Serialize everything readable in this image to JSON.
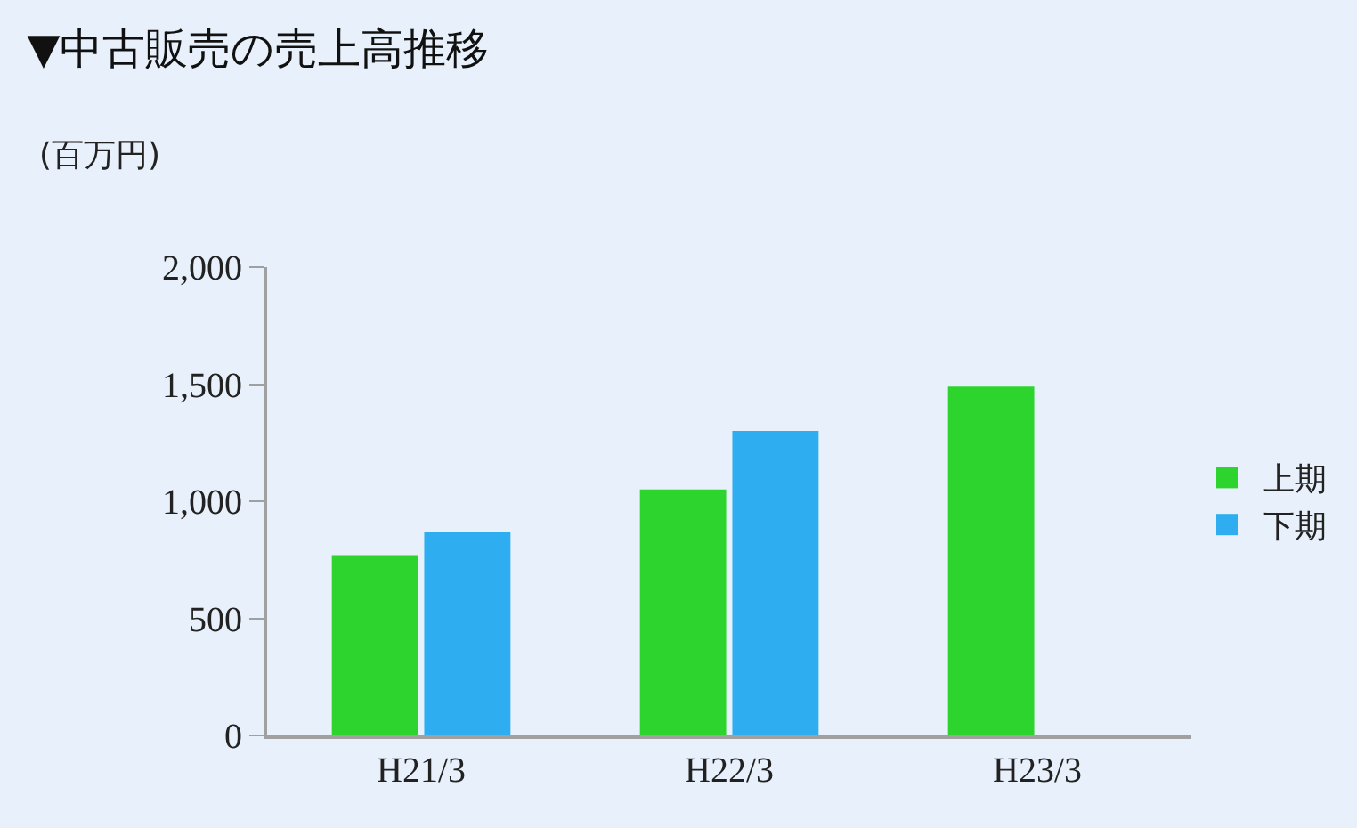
{
  "chart_data": {
    "type": "bar",
    "title": "▼中古販売の売上高推移",
    "ylabel": "(百万円)",
    "categories": [
      "H21/3",
      "H22/3",
      "H23/3"
    ],
    "series": [
      {
        "name": "上期",
        "color": "#2ed42e",
        "values": [
          770,
          1050,
          1490
        ]
      },
      {
        "name": "下期",
        "color": "#2eaef0",
        "values": [
          870,
          1300,
          null
        ]
      }
    ],
    "ylim": [
      0,
      2000
    ],
    "yticks": [
      {
        "value": 0,
        "label": "0"
      },
      {
        "value": 500,
        "label": "500"
      },
      {
        "value": 1000,
        "label": "1,000"
      },
      {
        "value": 1500,
        "label": "1,500"
      },
      {
        "value": 2000,
        "label": "2,000"
      }
    ],
    "grid": false,
    "legend": "right"
  }
}
